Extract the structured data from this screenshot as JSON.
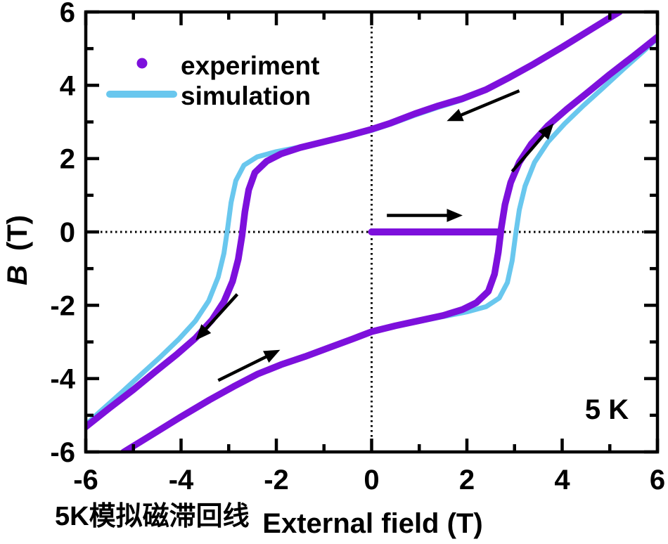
{
  "annotations": {
    "temperature": "5 K",
    "caption": "5K模拟磁滞回线",
    "caption_color": "#e7231d"
  },
  "legend": {
    "position": "top-left-inside",
    "items": [
      {
        "label": "experiment",
        "marker": "dot"
      },
      {
        "label": "simulation",
        "marker": "line"
      }
    ]
  },
  "chart_data": {
    "type": "line",
    "title": "",
    "xlabel": "External field (T)",
    "ylabel": "B (T)",
    "grid": "off",
    "zero_reference_lines": "dotted crosshair at x=0 and y=0",
    "axes": {
      "x": {
        "label": "External field (T)",
        "range": [
          -6,
          6
        ],
        "major_tick_values": [
          -6,
          -4,
          -2,
          0,
          2,
          4,
          6
        ],
        "major_tick_labels": [
          "-6",
          "-4",
          "-2",
          "0",
          "2",
          "4",
          "6"
        ],
        "minor_tick_values": [
          -5,
          -3,
          -1,
          1,
          3,
          5
        ]
      },
      "y": {
        "label_main": "B",
        "label_unit": "(T)",
        "range": [
          -6,
          6
        ],
        "major_tick_values": [
          -6,
          -4,
          -2,
          0,
          2,
          4,
          6
        ],
        "major_tick_labels": [
          "-6",
          "-4",
          "-2",
          "0",
          "2",
          "4",
          "6"
        ],
        "minor_tick_values": [
          -5,
          -3,
          -1,
          1,
          3,
          5
        ]
      }
    },
    "series": [
      {
        "name": "simulation",
        "color": "#69c7ee",
        "line_width": 7,
        "branches": {
          "increasing": [
            [
              -5.5,
              -6.45
            ],
            [
              -5.2,
              -6.0
            ],
            [
              -4.6,
              -5.52
            ],
            [
              -4.0,
              -5.04
            ],
            [
              -3.4,
              -4.58
            ],
            [
              -2.9,
              -4.22
            ],
            [
              -2.4,
              -3.88
            ],
            [
              -1.9,
              -3.62
            ],
            [
              -1.4,
              -3.4
            ],
            [
              -0.9,
              -3.16
            ],
            [
              -0.4,
              -2.92
            ],
            [
              0,
              -2.72
            ],
            [
              0.5,
              -2.57
            ],
            [
              1.0,
              -2.44
            ],
            [
              1.5,
              -2.31
            ],
            [
              2.0,
              -2.18
            ],
            [
              2.4,
              -2.04
            ],
            [
              2.68,
              -1.8
            ],
            [
              2.85,
              -1.38
            ],
            [
              2.95,
              -0.78
            ],
            [
              3.02,
              -0.1
            ],
            [
              3.1,
              0.6
            ],
            [
              3.22,
              1.25
            ],
            [
              3.42,
              1.9
            ],
            [
              3.7,
              2.45
            ],
            [
              4.05,
              2.95
            ],
            [
              4.45,
              3.45
            ],
            [
              4.85,
              3.92
            ],
            [
              5.25,
              4.4
            ],
            [
              5.7,
              4.92
            ],
            [
              6.1,
              5.4
            ]
          ],
          "decreasing": [
            [
              5.5,
              6.45
            ],
            [
              5.2,
              6.0
            ],
            [
              4.6,
              5.52
            ],
            [
              4.0,
              5.04
            ],
            [
              3.4,
              4.58
            ],
            [
              2.9,
              4.22
            ],
            [
              2.4,
              3.87
            ],
            [
              1.9,
              3.6
            ],
            [
              1.4,
              3.4
            ],
            [
              0.9,
              3.18
            ],
            [
              0.4,
              2.94
            ],
            [
              0,
              2.77
            ],
            [
              -0.5,
              2.6
            ],
            [
              -1.0,
              2.45
            ],
            [
              -1.5,
              2.32
            ],
            [
              -2.0,
              2.19
            ],
            [
              -2.4,
              2.05
            ],
            [
              -2.68,
              1.82
            ],
            [
              -2.85,
              1.4
            ],
            [
              -2.95,
              0.8
            ],
            [
              -3.02,
              0.12
            ],
            [
              -3.1,
              -0.58
            ],
            [
              -3.22,
              -1.23
            ],
            [
              -3.42,
              -1.88
            ],
            [
              -3.7,
              -2.43
            ],
            [
              -4.05,
              -2.93
            ],
            [
              -4.45,
              -3.43
            ],
            [
              -4.85,
              -3.9
            ],
            [
              -5.25,
              -4.38
            ],
            [
              -5.7,
              -4.9
            ],
            [
              -6.1,
              -5.38
            ]
          ]
        }
      },
      {
        "name": "experiment",
        "color": "#7d10dc",
        "line_width": 9.5,
        "branches": {
          "virgin": [
            [
              0,
              0
            ],
            [
              2.64,
              0
            ]
          ],
          "increasing": [
            [
              -5.5,
              -6.45
            ],
            [
              -5.2,
              -6.0
            ],
            [
              -4.6,
              -5.52
            ],
            [
              -4.0,
              -5.04
            ],
            [
              -3.4,
              -4.58
            ],
            [
              -2.9,
              -4.22
            ],
            [
              -2.4,
              -3.88
            ],
            [
              -1.9,
              -3.62
            ],
            [
              -1.4,
              -3.4
            ],
            [
              -0.9,
              -3.16
            ],
            [
              -0.4,
              -2.92
            ],
            [
              0,
              -2.72
            ],
            [
              0.5,
              -2.56
            ],
            [
              1.0,
              -2.42
            ],
            [
              1.5,
              -2.28
            ],
            [
              1.9,
              -2.12
            ],
            [
              2.2,
              -1.93
            ],
            [
              2.45,
              -1.62
            ],
            [
              2.58,
              -1.15
            ],
            [
              2.66,
              -0.55
            ],
            [
              2.72,
              0.1
            ],
            [
              2.8,
              0.75
            ],
            [
              2.92,
              1.35
            ],
            [
              3.1,
              1.9
            ],
            [
              3.35,
              2.4
            ],
            [
              3.7,
              2.9
            ],
            [
              4.1,
              3.35
            ],
            [
              4.55,
              3.82
            ],
            [
              5.0,
              4.3
            ],
            [
              5.5,
              4.8
            ],
            [
              6.1,
              5.42
            ]
          ],
          "decreasing": [
            [
              5.5,
              6.45
            ],
            [
              5.2,
              6.0
            ],
            [
              4.6,
              5.52
            ],
            [
              4.0,
              5.04
            ],
            [
              3.4,
              4.58
            ],
            [
              2.9,
              4.22
            ],
            [
              2.4,
              3.88
            ],
            [
              1.9,
              3.63
            ],
            [
              1.4,
              3.44
            ],
            [
              0.9,
              3.22
            ],
            [
              0.4,
              2.97
            ],
            [
              0,
              2.8
            ],
            [
              -0.5,
              2.62
            ],
            [
              -1.0,
              2.46
            ],
            [
              -1.5,
              2.3
            ],
            [
              -1.9,
              2.13
            ],
            [
              -2.2,
              1.93
            ],
            [
              -2.45,
              1.62
            ],
            [
              -2.58,
              1.15
            ],
            [
              -2.66,
              0.55
            ],
            [
              -2.72,
              -0.1
            ],
            [
              -2.8,
              -0.75
            ],
            [
              -2.92,
              -1.35
            ],
            [
              -3.1,
              -1.9
            ],
            [
              -3.35,
              -2.4
            ],
            [
              -3.7,
              -2.9
            ],
            [
              -4.1,
              -3.35
            ],
            [
              -4.55,
              -3.82
            ],
            [
              -5.0,
              -4.3
            ],
            [
              -5.5,
              -4.8
            ],
            [
              -6.1,
              -5.42
            ]
          ]
        }
      }
    ],
    "direction_arrows": [
      {
        "from": [
          0.32,
          0.45
        ],
        "to": [
          1.8,
          0.45
        ],
        "meaning": "virgin curve, field increasing"
      },
      {
        "from": [
          2.95,
          1.65
        ],
        "to": [
          3.75,
          2.85
        ],
        "meaning": "ascending branch"
      },
      {
        "from": [
          3.1,
          3.85
        ],
        "to": [
          1.68,
          3.08
        ],
        "meaning": "descending branch"
      },
      {
        "from": [
          -2.82,
          -1.7
        ],
        "to": [
          -3.62,
          -2.85
        ],
        "meaning": "descending branch"
      },
      {
        "from": [
          -3.22,
          -4.05
        ],
        "to": [
          -2.02,
          -3.28
        ],
        "meaning": "ascending branch"
      }
    ],
    "styles": {
      "axis_color": "#000000",
      "arrow_color": "#000000",
      "dotted_line_color": "#000000"
    }
  }
}
